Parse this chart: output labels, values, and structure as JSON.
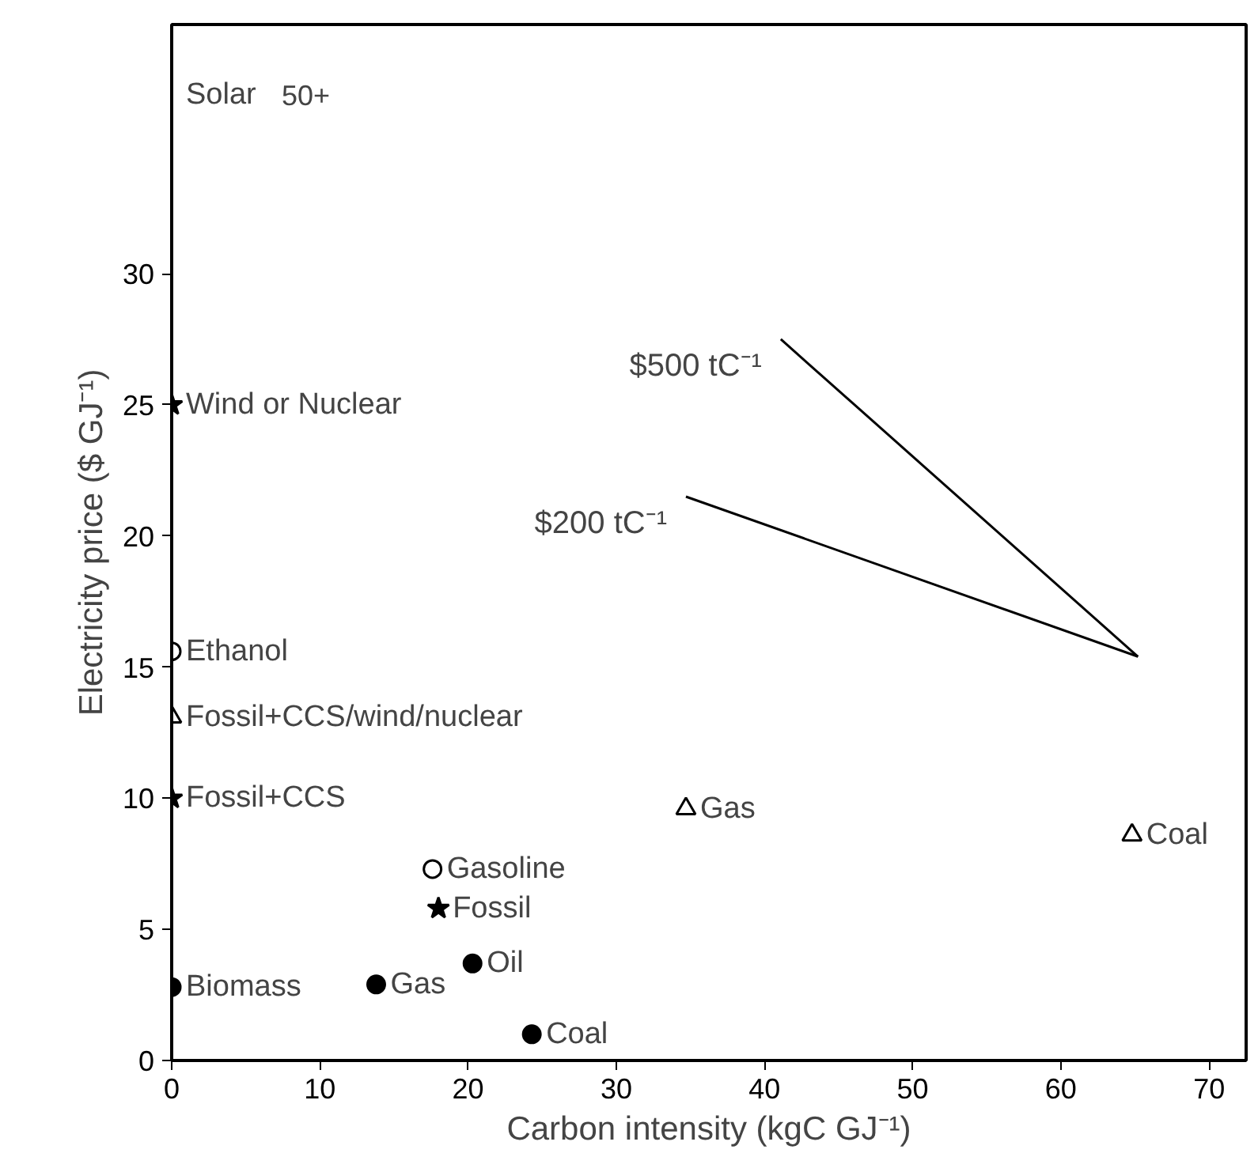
{
  "chart_data": {
    "type": "scatter",
    "xlabel": "Carbon intensity (kgC GJ⁻¹)",
    "ylabel": "Electricity price ($ GJ⁻¹)",
    "xlim": [
      0,
      72.5
    ],
    "xticks": [
      0,
      10,
      20,
      30,
      40,
      50,
      60,
      70
    ],
    "ylim": [
      0,
      39.5
    ],
    "yticks": [
      0,
      5,
      10,
      15,
      20,
      25,
      30
    ],
    "grid": false,
    "legend": false,
    "series": [
      {
        "marker": "triangle",
        "color": "#ffffff",
        "x": [
          0,
          34.7,
          64.8
        ],
        "values": [
          13.1,
          9.6,
          8.6
        ]
      },
      {
        "marker": "star",
        "color": "#000000",
        "x": [
          0,
          0,
          18.0
        ],
        "values": [
          25.0,
          10.0,
          5.8
        ]
      },
      {
        "marker": "circle",
        "color": "#ffffff",
        "x": [
          0,
          17.6
        ],
        "values": [
          15.6,
          7.3
        ]
      },
      {
        "marker": "circle",
        "color": "#000000",
        "x": [
          0,
          13.8,
          20.3,
          24.3
        ],
        "values": [
          2.8,
          2.9,
          3.7,
          1.0
        ]
      },
      {
        "type": "line",
        "name": "$500 tC⁻¹",
        "marker": "none",
        "color": "#000000",
        "x": [
          41.1,
          65.2
        ],
        "values": [
          27.5,
          15.4
        ]
      },
      {
        "type": "line",
        "name": "$200 tC⁻¹",
        "marker": "none",
        "color": "#000000",
        "x": [
          34.7,
          65.2
        ],
        "values": [
          21.5,
          15.4
        ]
      }
    ],
    "annotations": [
      "50+",
      "Solar",
      {
        "text": "Wind or Nuclear",
        "x": 0,
        "y": 25.0
      },
      {
        "text": "Ethanol",
        "x": 0,
        "y": 15.6
      },
      {
        "text": "Fossil+CCS/wind/nuclear",
        "x": 0,
        "y": 13.1
      },
      {
        "text": "Fossil+CCS",
        "x": 0,
        "y": 10.0
      },
      {
        "text": "Gasoline",
        "x": 17.6,
        "y": 7.3
      },
      {
        "text": "Fossil",
        "x": 18.0,
        "y": 5.8
      },
      {
        "text": "Oil",
        "x": 20.3,
        "y": 3.7
      },
      {
        "text": "Biomass",
        "x": 0,
        "y": 2.8
      },
      {
        "text": "Gas",
        "x": 13.8,
        "y": 2.9
      },
      {
        "text": "Coal",
        "x": 24.3,
        "y": 1.0
      },
      {
        "text": "Gas",
        "x": 34.7,
        "y": 9.6
      },
      {
        "text": "Coal",
        "x": 64.8,
        "y": 8.6
      }
    ]
  }
}
